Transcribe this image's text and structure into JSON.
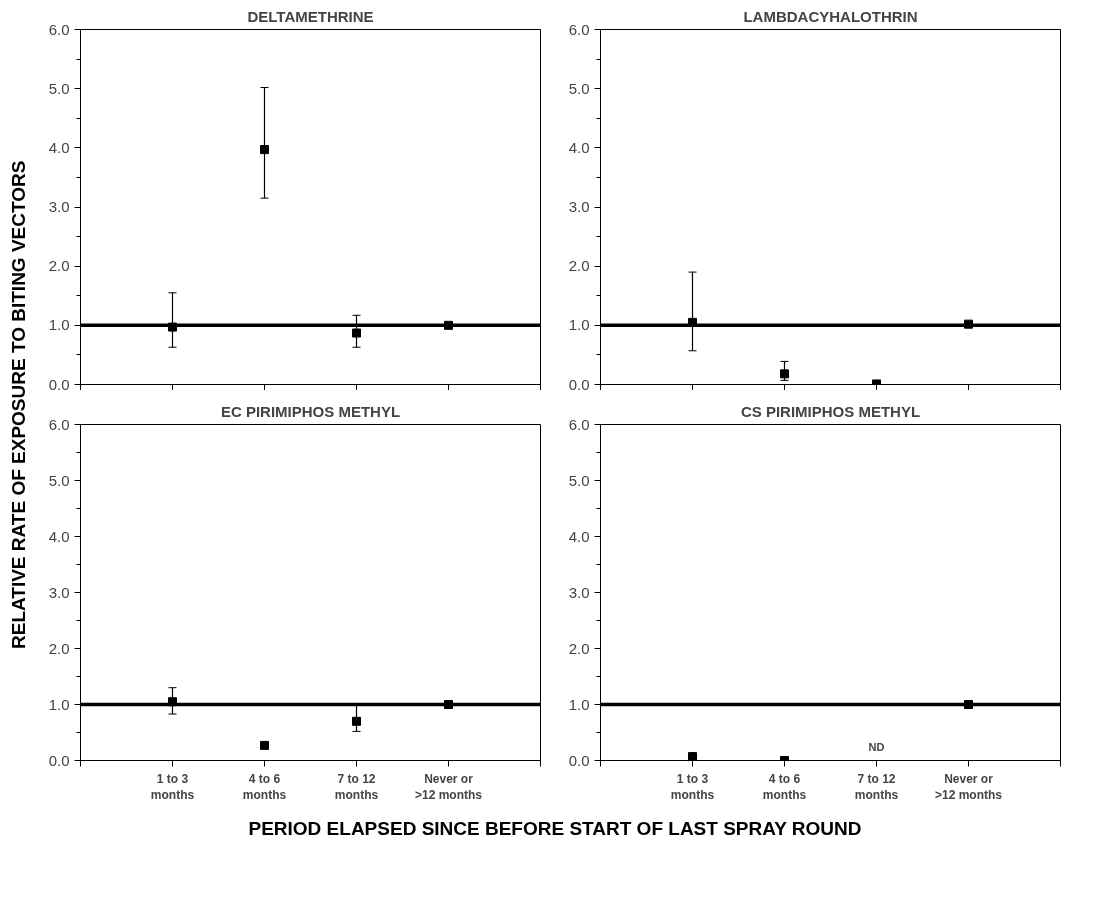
{
  "chart_data": [
    {
      "type": "scatter",
      "title": "DELTAMETHRINE",
      "ylabel": "RELATIVE RATE OF EXPOSURE TO BITING VECTORS",
      "categories": [
        null,
        null,
        null,
        null
      ],
      "values": [
        0.97,
        3.97,
        0.87,
        1.0
      ],
      "errors": [
        [
          0.63,
          1.55
        ],
        [
          3.15,
          5.02
        ],
        [
          0.63,
          1.17
        ],
        null
      ],
      "color": "#000000",
      "marker": "square",
      "ylim": [
        0,
        6
      ],
      "yticks": [
        {
          "value": 0,
          "label": "0.0"
        },
        {
          "value": 1,
          "label": "1.0"
        },
        {
          "value": 2,
          "label": "2.0"
        },
        {
          "value": 3,
          "label": "3.0"
        },
        {
          "value": 4,
          "label": "4.0"
        },
        {
          "value": 5,
          "label": "5.0"
        },
        {
          "value": 6,
          "label": "6.0"
        }
      ],
      "ref_lines": [
        {
          "axis": "y",
          "value": 1,
          "color": "#000000"
        }
      ],
      "tick_labels": "y",
      "grid": false
    },
    {
      "type": "scatter",
      "title": "LAMBDACYHALOTHRIN",
      "categories": [
        null,
        null,
        null,
        null
      ],
      "values": [
        1.05,
        0.18,
        0.01,
        1.02
      ],
      "errors": [
        [
          0.57,
          1.9
        ],
        [
          0.07,
          0.39
        ],
        null,
        null
      ],
      "color": "#000000",
      "marker": "square",
      "ylim": [
        0,
        6
      ],
      "yticks": [
        {
          "value": 0,
          "label": "0.0"
        },
        {
          "value": 1,
          "label": "1.0"
        },
        {
          "value": 2,
          "label": "2.0"
        },
        {
          "value": 3,
          "label": "3.0"
        },
        {
          "value": 4,
          "label": "4.0"
        },
        {
          "value": 5,
          "label": "5.0"
        },
        {
          "value": 6,
          "label": "6.0"
        }
      ],
      "ref_lines": [
        {
          "axis": "y",
          "value": 1,
          "color": "#000000"
        }
      ],
      "tick_labels": "y",
      "grid": false
    },
    {
      "type": "scatter",
      "title": "EC PIRIMIPHOS METHYL",
      "xlabel": "PERIOD ELAPSED SINCE BEFORE START OF LAST SPRAY ROUND",
      "categories": [
        "1 to 3\nmonths",
        "4 to 6\nmonths",
        "7 to 12\nmonths",
        "Never or\n>12 months"
      ],
      "values": [
        1.05,
        0.27,
        0.7,
        1.0
      ],
      "errors": [
        [
          0.83,
          1.3
        ],
        [
          0.23,
          0.3
        ],
        [
          0.52,
          1.0
        ],
        null
      ],
      "color": "#000000",
      "marker": "square",
      "ylim": [
        0,
        6
      ],
      "yticks": [
        {
          "value": 0,
          "label": "0.0"
        },
        {
          "value": 1,
          "label": "1.0"
        },
        {
          "value": 2,
          "label": "2.0"
        },
        {
          "value": 3,
          "label": "3.0"
        },
        {
          "value": 4,
          "label": "4.0"
        },
        {
          "value": 5,
          "label": "5.0"
        },
        {
          "value": 6,
          "label": "6.0"
        }
      ],
      "ref_lines": [
        {
          "axis": "y",
          "value": 1,
          "color": "#000000"
        }
      ],
      "grid": false
    },
    {
      "type": "scatter",
      "title": "CS PIRIMIPHOS METHYL",
      "categories": [
        "1 to 3\nmonths",
        "4 to 6\nmonths",
        "7 to 12\nmonths",
        "Never or\n>12 months"
      ],
      "values": [
        0.07,
        0.0,
        null,
        1.0
      ],
      "errors": [
        [
          0.04,
          0.1
        ],
        null,
        null,
        null
      ],
      "color": "#000000",
      "marker": "square",
      "ylim": [
        0,
        6
      ],
      "yticks": [
        {
          "value": 0,
          "label": "0.0"
        },
        {
          "value": 1,
          "label": "1.0"
        },
        {
          "value": 2,
          "label": "2.0"
        },
        {
          "value": 3,
          "label": "3.0"
        },
        {
          "value": 4,
          "label": "4.0"
        },
        {
          "value": 5,
          "label": "5.0"
        },
        {
          "value": 6,
          "label": "6.0"
        }
      ],
      "ref_lines": [
        {
          "axis": "y",
          "value": 1,
          "color": "#000000"
        }
      ],
      "annotations": [
        "ND"
      ],
      "grid": false
    }
  ]
}
